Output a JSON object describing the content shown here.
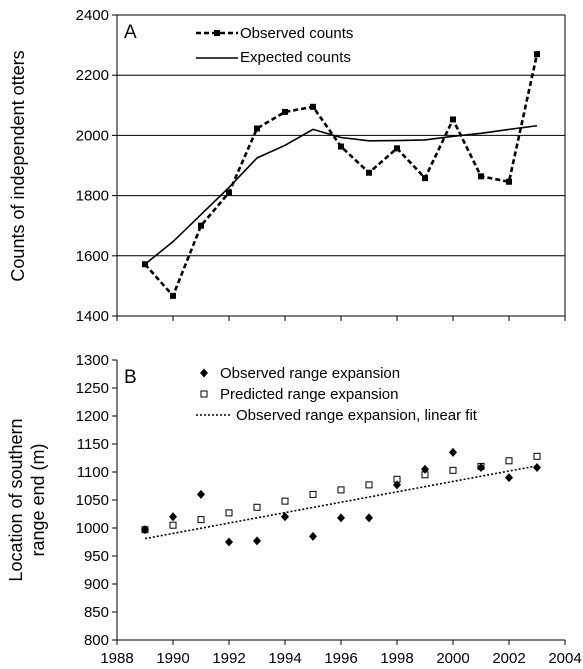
{
  "chart_data": [
    {
      "panel_label": "A",
      "type": "line",
      "ylabel": "Counts of independent otters",
      "xlabel": "",
      "ylim": [
        1400,
        2400
      ],
      "yticks": [
        1400,
        1600,
        1800,
        2000,
        2200,
        2400
      ],
      "grid": "horizontal",
      "legend_position": "top",
      "series": [
        {
          "name": "Observed counts",
          "style": "dashed-square-markers",
          "x": [
            1989,
            1990,
            1991,
            1992,
            1993,
            1994,
            1995,
            1996,
            1997,
            1998,
            1999,
            2000,
            2001,
            2002,
            2003
          ],
          "y": [
            1572,
            1467,
            1700,
            1810,
            2023,
            2078,
            2095,
            1963,
            1876,
            1957,
            1858,
            2053,
            1864,
            1846,
            2270
          ]
        },
        {
          "name": "Expected counts",
          "style": "solid",
          "x": [
            1989,
            1990,
            1991,
            1992,
            1993,
            1994,
            1995,
            1996,
            1997,
            1998,
            1999,
            2000,
            2001,
            2002,
            2003
          ],
          "y": [
            1572,
            1647,
            1737,
            1827,
            1925,
            1967,
            2020,
            1993,
            1982,
            1983,
            1985,
            1997,
            2007,
            2020,
            2032
          ]
        }
      ]
    },
    {
      "panel_label": "B",
      "type": "scatter",
      "ylabel_lines": [
        "Location of southern",
        "range end (m)"
      ],
      "xlabel": "",
      "xlim": [
        1988,
        2004
      ],
      "xticks": [
        1988,
        1990,
        1992,
        1994,
        1996,
        1998,
        2000,
        2002,
        2004
      ],
      "ylim": [
        800,
        1300
      ],
      "yticks": [
        800,
        850,
        900,
        950,
        1000,
        1050,
        1100,
        1150,
        1200,
        1250,
        1300
      ],
      "grid": "none",
      "legend_position": "top-left",
      "series": [
        {
          "name": "Observed range expansion",
          "marker": "filled-diamond",
          "x": [
            1989,
            1990,
            1991,
            1992,
            1993,
            1994,
            1995,
            1996,
            1997,
            1998,
            1999,
            2000,
            2001,
            2002,
            2003
          ],
          "y": [
            997,
            1020,
            1060,
            975,
            977,
            1020,
            985,
            1018,
            1018,
            1077,
            1105,
            1135,
            1108,
            1090,
            1108
          ]
        },
        {
          "name": "Predicted range expansion",
          "marker": "open-square",
          "x": [
            1989,
            1990,
            1991,
            1992,
            1993,
            1994,
            1995,
            1996,
            1997,
            1998,
            1999,
            2000,
            2001,
            2002,
            2003
          ],
          "y": [
            997,
            1005,
            1015,
            1027,
            1037,
            1048,
            1060,
            1068,
            1077,
            1087,
            1095,
            1103,
            1110,
            1120,
            1128
          ]
        },
        {
          "name": "Observed range expansion, linear fit",
          "style": "dotted-line",
          "x": [
            1989,
            2003
          ],
          "y": [
            981,
            1111
          ]
        }
      ]
    }
  ]
}
